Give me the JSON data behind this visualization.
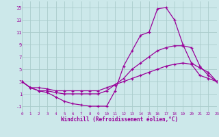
{
  "bg_color": "#cce8ea",
  "grid_color": "#aacccc",
  "line_color": "#990099",
  "xlabel": "Windchill (Refroidissement éolien,°C)",
  "xlim": [
    0,
    23
  ],
  "ylim": [
    -2,
    16
  ],
  "yticks": [
    -1,
    1,
    3,
    5,
    7,
    9,
    11,
    13,
    15
  ],
  "xticks": [
    0,
    1,
    2,
    3,
    4,
    5,
    6,
    7,
    8,
    9,
    10,
    11,
    12,
    13,
    14,
    15,
    16,
    17,
    18,
    19,
    20,
    21,
    22,
    23
  ],
  "series1_y": [
    3,
    2,
    1.5,
    1.2,
    0.5,
    -0.2,
    -0.6,
    -0.8,
    -1.0,
    -1.0,
    -1.0,
    1.5,
    5.5,
    8.0,
    10.5,
    11.0,
    14.8,
    15.0,
    13.0,
    9.0,
    6.0,
    5.2,
    4.5,
    3.0
  ],
  "series2_y": [
    3,
    2,
    1.5,
    1.5,
    1.2,
    1.0,
    1.0,
    1.0,
    1.0,
    1.0,
    1.5,
    2.5,
    3.5,
    5.0,
    6.0,
    7.0,
    8.0,
    8.5,
    8.8,
    8.8,
    8.5,
    5.5,
    4.0,
    3.0
  ],
  "series3_y": [
    3,
    2,
    2.0,
    1.8,
    1.5,
    1.5,
    1.5,
    1.5,
    1.5,
    1.5,
    2.0,
    2.5,
    3.0,
    3.5,
    4.0,
    4.5,
    5.0,
    5.5,
    5.8,
    6.0,
    5.8,
    4.0,
    3.5,
    3.0
  ]
}
